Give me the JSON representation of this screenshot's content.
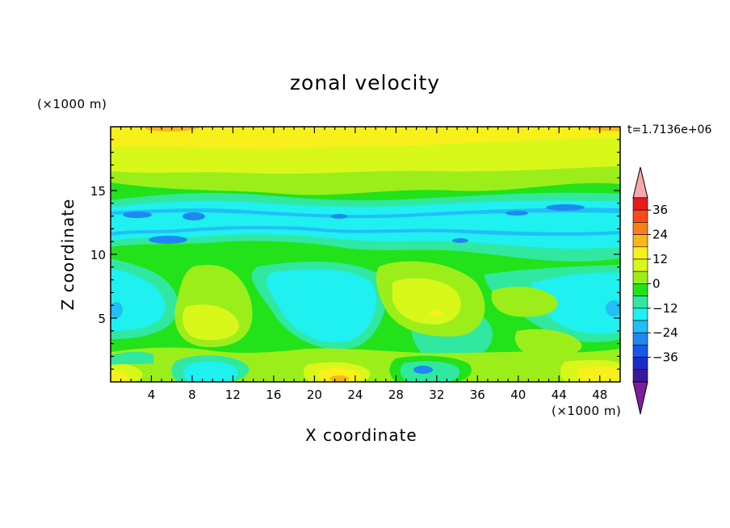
{
  "chart_data": {
    "type": "heatmap",
    "title": "zonal velocity",
    "xlabel": "X coordinate",
    "ylabel": "Z coordinate",
    "x_multiplier": "(×1000 m)",
    "y_multiplier": "(×1000 m)",
    "time_label": "t=1.7136e+06",
    "xlim": [
      0,
      50
    ],
    "ylim": [
      0,
      20
    ],
    "x_ticks": [
      4,
      8,
      12,
      16,
      20,
      24,
      28,
      32,
      36,
      40,
      44,
      48
    ],
    "y_ticks": [
      5,
      10,
      15
    ],
    "colorbar": {
      "levels": [
        -42,
        -36,
        -30,
        -24,
        -18,
        -12,
        -6,
        0,
        6,
        12,
        18,
        24,
        30,
        36,
        42
      ],
      "labels": [
        36,
        24,
        12,
        0,
        -12,
        -24,
        -36
      ],
      "colors": [
        "#7a1fa0",
        "#3a1a9c",
        "#1c2cc8",
        "#1a56e8",
        "#1e88f0",
        "#22bef8",
        "#1ff0f0",
        "#30e8a0",
        "#22e21a",
        "#9cee1a",
        "#d8f81a",
        "#f8f01a",
        "#f8b81a",
        "#f8801a",
        "#f84a1a",
        "#e81a1a",
        "#f8a8a8"
      ],
      "extend": "both"
    }
  }
}
